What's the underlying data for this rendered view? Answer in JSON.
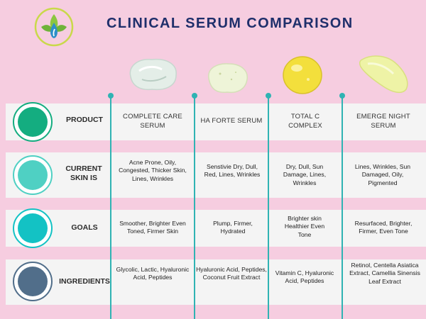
{
  "title": "CLINICAL SERUM COMPARISON",
  "colors": {
    "background": "#f6cde0",
    "title": "#1f2f6b",
    "band": "#f4f4f4",
    "divider": "#2fb3b3"
  },
  "logo": {
    "icon": "drop-leaf-logo-icon"
  },
  "rows": [
    {
      "label": "PRODUCT",
      "color": "#14ad80"
    },
    {
      "label": "CURRENT SKIN IS",
      "color": "#4fd0c3"
    },
    {
      "label": "GOALS",
      "color": "#13c2c4"
    },
    {
      "label": "INGREDIENTS",
      "color": "#516e8a"
    }
  ],
  "products": [
    {
      "swatch": "clear-gel-swatch",
      "name": "COMPLETE CARE SERUM",
      "skin": "Acne Prone, Oily, Congested, Thicker Skin, Lines, Wrinkles",
      "goals": "Smoother, Brighter Even Toned, Firmer Skin",
      "ingredients": "Glycolic, Lactic, Hyaluronic Acid, Peptides"
    },
    {
      "swatch": "pale-gel-swatch",
      "name": "HA FORTE SERUM",
      "skin": "Senstivie Dry, Dull, Red, Lines, Wrinkles",
      "goals": "Plump, Firmer, Hydrated",
      "ingredients": "Hyaluronic Acid, Peptides, Coconut Fruit Extract"
    },
    {
      "swatch": "yellow-oil-swatch",
      "name": "TOTAL C COMPLEX",
      "skin": "Dry, Dull, Sun Damage, Lines, Wrinkles",
      "goals": "Brighter skin Healthier Even Tone",
      "ingredients": "Vitamin C, Hyaluronic Acid, Peptides"
    },
    {
      "swatch": "cream-smear-swatch",
      "name": "EMERGE NIGHT SERUM",
      "skin": "Lines, Wrinkles, Sun Damaged, Oily, Pigmented",
      "goals": "Resurfaced, Brighter, Firmer, Even Tone",
      "ingredients": "Retinol, Centella Asiatica Extract, Camellia Sinensis Leaf Extract"
    }
  ]
}
